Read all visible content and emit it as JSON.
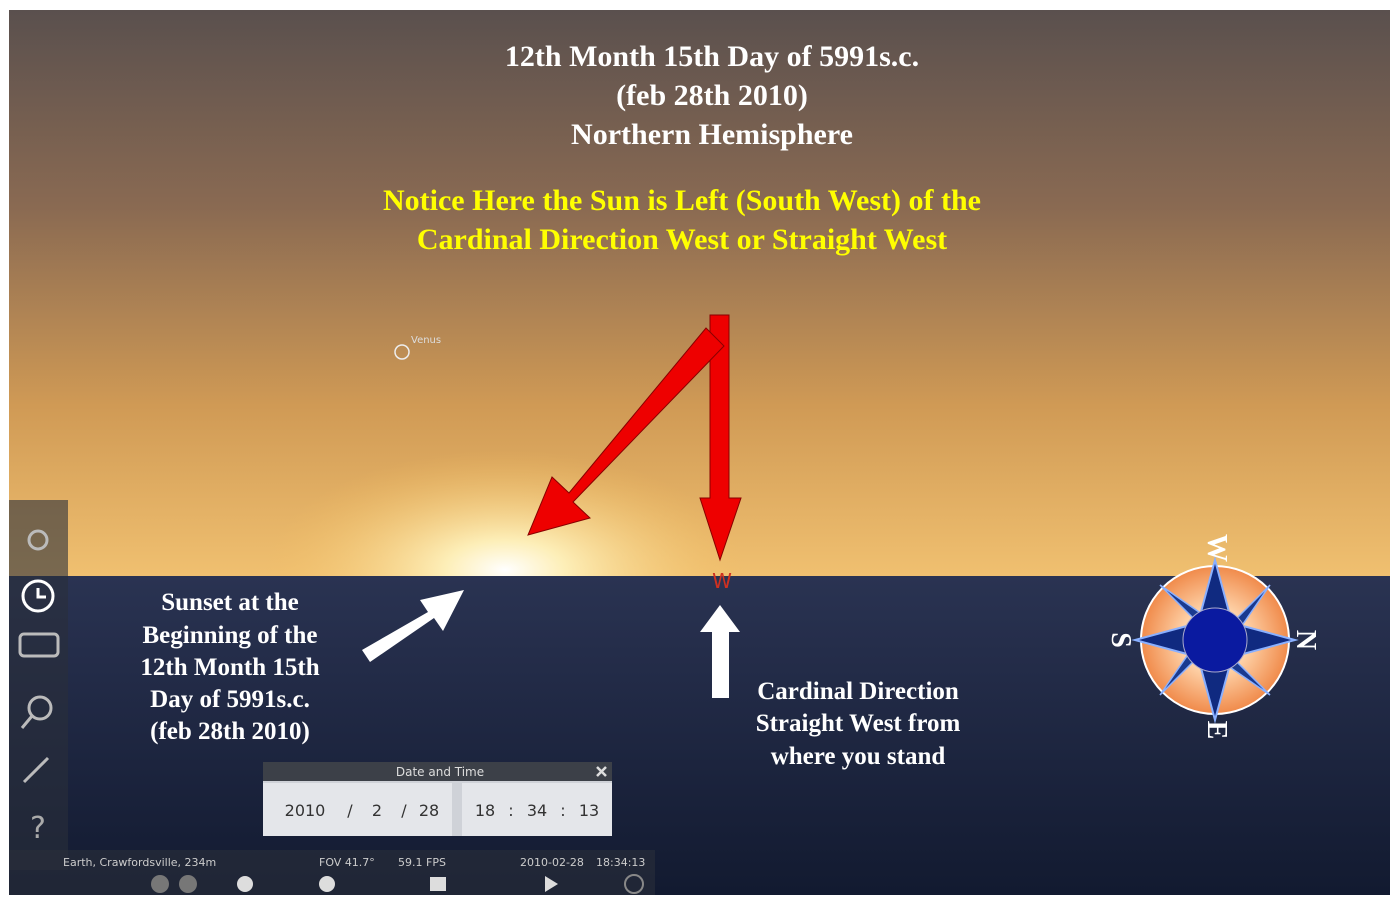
{
  "title_lines": [
    "12th Month 15th Day of 5991s.c.",
    "(feb 28th 2010)",
    "Northern Hemisphere"
  ],
  "notice_lines": [
    "Notice Here the Sun is Left (South West) of the",
    "Cardinal Direction West or Straight West"
  ],
  "sky_labels": {
    "planet": "Venus",
    "cardinal": "W"
  },
  "sunset_note": [
    "Sunset at the",
    "Beginning of the",
    "12th Month 15th",
    "Day of 5991s.c.",
    "(feb 28th 2010)"
  ],
  "west_note": [
    "Cardinal Direction",
    "Straight West from",
    "where you stand"
  ],
  "date_time_dialog": {
    "title": "Date and Time",
    "date": [
      "2010",
      "2",
      "28"
    ],
    "date_separator": "/",
    "time": [
      "18",
      "34",
      "13"
    ],
    "time_separator": ":"
  },
  "status_bar": {
    "location": "Earth, Crawfordsville, 234m",
    "fov": "FOV 41.7°",
    "fps": "59.1 FPS",
    "date": "2010-02-28",
    "time": "18:34:13"
  },
  "compass": {
    "west": "W",
    "south": "S",
    "north": "N",
    "east": "E"
  }
}
